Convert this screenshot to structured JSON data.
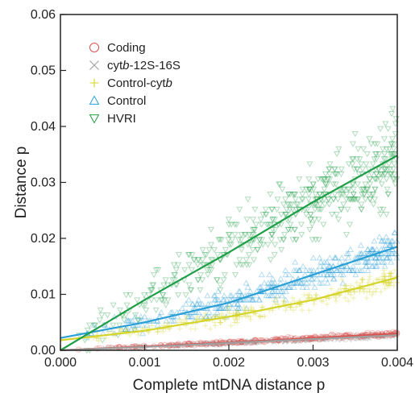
{
  "chart_data": {
    "type": "scatter",
    "xlabel": "Complete mtDNA distance p",
    "ylabel": "Distance p",
    "xlim": [
      0,
      0.004
    ],
    "ylim": [
      0,
      0.06
    ],
    "x_ticks": [
      "0.000",
      "0.001",
      "0.002",
      "0.003",
      "0.004"
    ],
    "y_ticks": [
      "0.00",
      "0.01",
      "0.02",
      "0.03",
      "0.04",
      "0.05",
      "0.06"
    ],
    "grid": false,
    "legend_position": "top-left",
    "series": [
      {
        "name": "Coding",
        "marker": "circle",
        "color": "#d9534f",
        "trend": [
          [
            0,
            0.0
          ],
          [
            0.001,
            0.0007
          ],
          [
            0.002,
            0.0014
          ],
          [
            0.003,
            0.0022
          ],
          [
            0.004,
            0.003
          ]
        ]
      },
      {
        "name": "cytb-12S-16S",
        "marker": "cross",
        "color": "#a0a0a0",
        "trend": [
          [
            0,
            0.0
          ],
          [
            0.001,
            0.0006
          ],
          [
            0.002,
            0.0013
          ],
          [
            0.003,
            0.002
          ],
          [
            0.004,
            0.0027
          ]
        ]
      },
      {
        "name": "Control-cytb",
        "marker": "plus",
        "color": "#d4d42a",
        "trend": [
          [
            0,
            0.0018
          ],
          [
            0.001,
            0.0035
          ],
          [
            0.002,
            0.006
          ],
          [
            0.003,
            0.009
          ],
          [
            0.004,
            0.013
          ]
        ]
      },
      {
        "name": "Control",
        "marker": "triangle-up",
        "color": "#2a9fd6",
        "trend": [
          [
            0,
            0.0022
          ],
          [
            0.001,
            0.005
          ],
          [
            0.002,
            0.0085
          ],
          [
            0.003,
            0.0135
          ],
          [
            0.004,
            0.0185
          ]
        ]
      },
      {
        "name": "HVRI",
        "marker": "triangle-down",
        "color": "#1f9e48",
        "trend": [
          [
            0,
            0.0
          ],
          [
            0.001,
            0.009
          ],
          [
            0.002,
            0.0175
          ],
          [
            0.003,
            0.0265
          ],
          [
            0.004,
            0.0348
          ]
        ]
      }
    ]
  },
  "legend": {
    "items": [
      {
        "parts": [
          {
            "t": "Coding"
          }
        ]
      },
      {
        "parts": [
          {
            "t": "cyt"
          },
          {
            "t": "b",
            "i": true
          },
          {
            "t": "-12S-16S"
          }
        ]
      },
      {
        "parts": [
          {
            "t": "Control-cyt"
          },
          {
            "t": "b",
            "i": true
          }
        ]
      },
      {
        "parts": [
          {
            "t": "Control"
          }
        ]
      },
      {
        "parts": [
          {
            "t": "HVRI"
          }
        ]
      }
    ]
  }
}
